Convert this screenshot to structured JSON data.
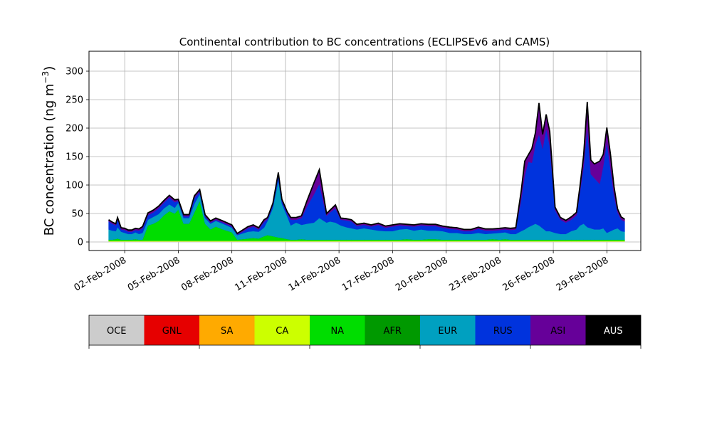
{
  "chart_data": {
    "type": "area",
    "stacked": true,
    "title": "Continental contribution to BC concentrations (ECLIPSEv6 and CAMS)",
    "ylabel_main": "BC concentration (ng m",
    "ylabel_sup": "−3",
    "ylabel_close": ")",
    "xlabel": "",
    "ylim": [
      -15,
      335
    ],
    "xlim": [
      -1.0,
      29.9
    ],
    "grid": true,
    "yticks": [
      0,
      50,
      100,
      150,
      200,
      250,
      300
    ],
    "xticks": [
      {
        "day": 1,
        "label": "02-Feb-2008"
      },
      {
        "day": 4,
        "label": "05-Feb-2008"
      },
      {
        "day": 7,
        "label": "08-Feb-2008"
      },
      {
        "day": 10,
        "label": "11-Feb-2008"
      },
      {
        "day": 13,
        "label": "14-Feb-2008"
      },
      {
        "day": 16,
        "label": "17-Feb-2008"
      },
      {
        "day": 19,
        "label": "20-Feb-2008"
      },
      {
        "day": 22,
        "label": "23-Feb-2008"
      },
      {
        "day": 25,
        "label": "26-Feb-2008"
      },
      {
        "day": 28,
        "label": "29-Feb-2008"
      }
    ],
    "x_days": [
      0.1,
      0.3,
      0.5,
      0.6,
      0.8,
      1.0,
      1.2,
      1.4,
      1.6,
      1.8,
      2.0,
      2.3,
      2.6,
      2.9,
      3.2,
      3.5,
      3.8,
      4.0,
      4.3,
      4.6,
      4.9,
      5.2,
      5.5,
      5.8,
      6.1,
      6.5,
      7.0,
      7.3,
      7.6,
      7.9,
      8.2,
      8.5,
      8.8,
      9.0,
      9.3,
      9.6,
      9.8,
      10.1,
      10.3,
      10.6,
      10.9,
      11.2,
      11.6,
      11.9,
      12.3,
      12.5,
      12.8,
      13.1,
      13.4,
      13.7,
      14.0,
      14.4,
      14.8,
      15.2,
      15.6,
      16.0,
      16.4,
      16.8,
      17.2,
      17.6,
      18.0,
      18.4,
      18.8,
      19.2,
      19.6,
      20.0,
      20.4,
      20.8,
      21.2,
      21.6,
      22.0,
      22.3,
      22.6,
      22.9,
      23.2,
      23.4,
      23.6,
      23.8,
      24.0,
      24.2,
      24.4,
      24.6,
      24.8,
      25.1,
      25.4,
      25.7,
      26.0,
      26.3,
      26.5,
      26.7,
      26.9,
      27.1,
      27.3,
      27.6,
      27.8,
      28.0,
      28.2,
      28.4,
      28.6,
      28.8,
      29.0
    ],
    "series": [
      {
        "name": "OCE",
        "color": "#cccccc",
        "values": [
          1,
          1,
          1,
          1,
          1,
          1,
          1,
          1,
          1,
          1,
          1,
          1,
          1,
          1,
          1,
          1,
          1,
          1,
          1,
          1,
          1,
          1,
          1,
          1,
          1,
          1,
          1,
          1,
          1,
          1,
          1,
          1,
          1,
          1,
          1,
          1,
          1,
          1,
          1,
          1,
          1,
          1,
          1,
          1,
          1,
          1,
          1,
          1,
          1,
          1,
          1,
          1,
          1,
          1,
          1,
          1,
          1,
          1,
          1,
          1,
          1,
          1,
          1,
          1,
          1,
          1,
          1,
          1,
          1,
          1,
          1,
          1,
          1,
          1,
          1,
          1,
          1,
          1,
          1,
          1,
          1,
          1,
          1,
          1,
          1,
          1,
          1,
          1,
          1,
          1,
          1,
          1,
          1,
          1,
          1,
          1,
          1,
          1,
          1,
          1,
          1
        ]
      },
      {
        "name": "GNL",
        "color": "#e60000",
        "values": [
          0,
          0,
          0,
          0,
          0,
          0,
          0,
          0,
          0,
          0,
          0,
          0,
          0,
          0,
          0,
          0,
          0,
          0,
          0,
          0,
          0,
          0,
          0,
          0,
          0,
          0,
          0,
          0,
          0,
          0,
          0,
          0,
          0,
          0,
          0,
          0,
          0,
          0,
          0,
          0,
          0,
          0,
          0,
          0,
          0,
          0,
          0,
          0,
          0,
          0,
          0,
          0,
          0,
          0,
          0,
          0,
          0,
          0,
          0,
          0,
          0,
          0,
          0,
          0,
          0,
          0,
          0,
          0,
          0,
          0,
          0,
          0,
          0,
          0,
          0,
          0,
          0,
          0,
          0,
          0,
          0,
          0,
          0,
          0,
          0,
          0,
          0,
          0,
          0,
          0,
          0,
          0,
          0,
          0,
          0,
          0,
          0,
          0,
          0,
          0,
          0
        ]
      },
      {
        "name": "SA",
        "color": "#ffaa00",
        "values": [
          0,
          0,
          0,
          0,
          0,
          0,
          0,
          0,
          0,
          0,
          0,
          0,
          0,
          0,
          0,
          0,
          0,
          0,
          0,
          0,
          0,
          0,
          0,
          0,
          0,
          0,
          0,
          0,
          0,
          0,
          0,
          0,
          0,
          0,
          0,
          0,
          0,
          0,
          0,
          0,
          0,
          0,
          0,
          0,
          0,
          0,
          0,
          0,
          0,
          0,
          0,
          0,
          0,
          0,
          0,
          0,
          0,
          0,
          0,
          0,
          0,
          0,
          0,
          0,
          0,
          0,
          0,
          0,
          0,
          0,
          0,
          0,
          0,
          0,
          0,
          0,
          0,
          0,
          0,
          0,
          0,
          0,
          0,
          0,
          0,
          0,
          0,
          0,
          0,
          0,
          0,
          0,
          0,
          0,
          0,
          0,
          0,
          0,
          0,
          0,
          0
        ]
      },
      {
        "name": "CA",
        "color": "#ccff00",
        "values": [
          1,
          1,
          1,
          1,
          1,
          1,
          1,
          1,
          1,
          1,
          1,
          1,
          1,
          1,
          1,
          1,
          1,
          1,
          1,
          1,
          1,
          1,
          1,
          1,
          1,
          1,
          1,
          1,
          1,
          1,
          1,
          1,
          1,
          1,
          1,
          1,
          1,
          1,
          1,
          1,
          1,
          1,
          1,
          1,
          1,
          1,
          1,
          1,
          1,
          1,
          1,
          1,
          1,
          1,
          1,
          1,
          1,
          1,
          1,
          1,
          1,
          1,
          1,
          1,
          1,
          1,
          1,
          1,
          1,
          1,
          1,
          1,
          1,
          1,
          1,
          1,
          1,
          1,
          1,
          1,
          1,
          1,
          1,
          1,
          1,
          1,
          1,
          1,
          1,
          1,
          1,
          1,
          1,
          1,
          1,
          1,
          1,
          1,
          1,
          1,
          1
        ]
      },
      {
        "name": "NA",
        "color": "#00dd00",
        "values": [
          2,
          2,
          3,
          4,
          2,
          2,
          2,
          2,
          3,
          2,
          2,
          27,
          30,
          35,
          45,
          52,
          48,
          55,
          30,
          30,
          50,
          70,
          30,
          20,
          25,
          20,
          15,
          2,
          3,
          4,
          5,
          4,
          8,
          10,
          8,
          6,
          5,
          3,
          2,
          2,
          3,
          2,
          2,
          2,
          2,
          2,
          2,
          2,
          2,
          2,
          2,
          2,
          2,
          2,
          2,
          2,
          2,
          3,
          2,
          2,
          3,
          3,
          2,
          2,
          2,
          2,
          2,
          2,
          2,
          3,
          2,
          3,
          2,
          2,
          2,
          2,
          2,
          2,
          2,
          2,
          2,
          2,
          2,
          2,
          2,
          2,
          2,
          2,
          2,
          2,
          2,
          2,
          2,
          2,
          2,
          2,
          2,
          2,
          2,
          2,
          2
        ]
      },
      {
        "name": "AFR",
        "color": "#009900",
        "values": [
          0,
          0,
          0,
          0,
          0,
          0,
          0,
          0,
          0,
          0,
          0,
          0,
          0,
          0,
          0,
          0,
          0,
          0,
          0,
          0,
          0,
          0,
          0,
          0,
          0,
          0,
          0,
          0,
          0,
          0,
          0,
          0,
          0,
          0,
          0,
          0,
          0,
          0,
          0,
          0,
          0,
          0,
          0,
          0,
          0,
          0,
          0,
          0,
          0,
          0,
          0,
          0,
          0,
          0,
          0,
          0,
          0,
          0,
          0,
          0,
          0,
          0,
          0,
          0,
          0,
          0,
          0,
          0,
          0,
          0,
          0,
          0,
          0,
          0,
          0,
          0,
          0,
          0,
          0,
          0,
          0,
          0,
          0,
          0,
          0,
          0,
          0,
          0,
          0,
          0,
          0,
          0,
          0,
          0,
          0,
          0,
          0,
          0,
          0,
          0,
          0
        ]
      },
      {
        "name": "EUR",
        "color": "#00a0c0",
        "values": [
          18,
          16,
          14,
          20,
          14,
          12,
          10,
          10,
          12,
          10,
          12,
          10,
          12,
          12,
          12,
          12,
          10,
          12,
          10,
          10,
          15,
          12,
          10,
          10,
          10,
          10,
          8,
          8,
          10,
          12,
          12,
          12,
          15,
          25,
          50,
          100,
          60,
          40,
          25,
          30,
          25,
          28,
          30,
          38,
          30,
          32,
          30,
          25,
          22,
          20,
          18,
          20,
          18,
          16,
          15,
          15,
          18,
          18,
          16,
          18,
          15,
          15,
          15,
          12,
          12,
          10,
          10,
          12,
          10,
          10,
          12,
          12,
          10,
          10,
          15,
          18,
          22,
          25,
          28,
          25,
          20,
          15,
          15,
          12,
          10,
          10,
          15,
          18,
          25,
          28,
          22,
          20,
          18,
          18,
          20,
          12,
          15,
          18,
          20,
          15,
          14
        ]
      },
      {
        "name": "RUS",
        "color": "#0033dd",
        "values": [
          14,
          12,
          10,
          14,
          4,
          5,
          4,
          4,
          4,
          6,
          8,
          8,
          8,
          10,
          10,
          12,
          10,
          3,
          3,
          3,
          10,
          4,
          3,
          2,
          2,
          2,
          2,
          1,
          3,
          6,
          8,
          4,
          10,
          3,
          5,
          10,
          5,
          5,
          10,
          5,
          12,
          30,
          50,
          60,
          12,
          16,
          25,
          10,
          12,
          12,
          6,
          6,
          5,
          10,
          6,
          8,
          7,
          5,
          7,
          7,
          8,
          8,
          6,
          7,
          6,
          5,
          5,
          7,
          6,
          5,
          5,
          5,
          7,
          8,
          55,
          95,
          115,
          110,
          140,
          160,
          140,
          180,
          150,
          40,
          25,
          20,
          20,
          25,
          60,
          100,
          175,
          95,
          90,
          80,
          110,
          160,
          110,
          60,
          28,
          20,
          18
        ]
      },
      {
        "name": "ASI",
        "color": "#660099",
        "values": [
          3,
          3,
          3,
          3,
          3,
          3,
          3,
          3,
          3,
          3,
          3,
          4,
          4,
          4,
          4,
          4,
          4,
          3,
          3,
          3,
          4,
          4,
          3,
          3,
          3,
          3,
          3,
          2,
          3,
          3,
          3,
          3,
          4,
          3,
          3,
          4,
          3,
          3,
          4,
          4,
          4,
          10,
          20,
          25,
          4,
          4,
          6,
          3,
          3,
          3,
          3,
          3,
          3,
          3,
          3,
          3,
          3,
          3,
          3,
          3,
          3,
          3,
          3,
          3,
          3,
          3,
          3,
          3,
          3,
          3,
          3,
          3,
          3,
          3,
          15,
          25,
          12,
          25,
          20,
          55,
          25,
          25,
          25,
          5,
          4,
          4,
          5,
          5,
          10,
          20,
          45,
          25,
          25,
          40,
          20,
          25,
          25,
          15,
          6,
          5,
          4
        ]
      },
      {
        "name": "AUS",
        "color": "#000000",
        "values": [
          0,
          0,
          0,
          0,
          0,
          0,
          0,
          0,
          0,
          0,
          0,
          0,
          0,
          0,
          0,
          0,
          0,
          0,
          0,
          0,
          0,
          0,
          0,
          0,
          0,
          0,
          0,
          0,
          0,
          0,
          0,
          0,
          0,
          0,
          0,
          0,
          0,
          0,
          0,
          0,
          0,
          0,
          0,
          0,
          0,
          0,
          0,
          0,
          0,
          0,
          0,
          0,
          0,
          0,
          0,
          0,
          0,
          0,
          0,
          0,
          0,
          0,
          0,
          0,
          0,
          0,
          0,
          0,
          0,
          0,
          0,
          0,
          0,
          0,
          0,
          0,
          0,
          0,
          0,
          0,
          0,
          0,
          0,
          0,
          0,
          0,
          0,
          0,
          0,
          0,
          0,
          0,
          0,
          0,
          0,
          0,
          0,
          0,
          0,
          0,
          0
        ]
      }
    ],
    "legend_order": [
      "OCE",
      "GNL",
      "SA",
      "CA",
      "NA",
      "AFR",
      "EUR",
      "RUS",
      "ASI",
      "AUS"
    ],
    "legend_text_color": {
      "AUS": "#ffffff"
    }
  }
}
